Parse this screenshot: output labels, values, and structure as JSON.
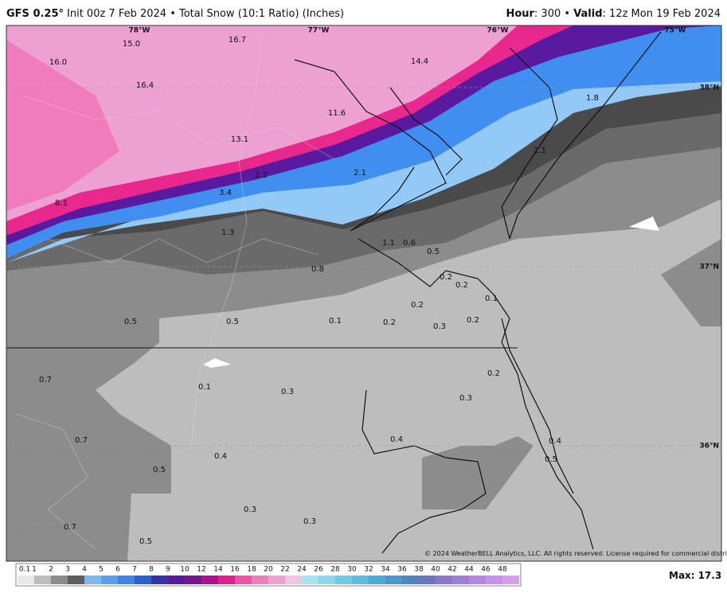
{
  "header": {
    "left_bold": "GFS 0.25°",
    "left_text": "Init 00z 7 Feb 2024 • Total Snow (10:1 Ratio) (Inches)",
    "right_parts": [
      "Hour",
      ": 300 • ",
      "Valid",
      ": 12z Mon 19 Feb 2024"
    ]
  },
  "lon_labels": [
    "78°W",
    "77°W",
    "76°W",
    "75°W"
  ],
  "lat_labels": [
    "38°N",
    "37°N",
    "36°N"
  ],
  "points": [
    "16.7",
    "15.0",
    "16.0",
    "16.4",
    "14.4",
    "11.6",
    "1.8",
    "13.1",
    "2.1",
    "2.1",
    "2.2",
    "3.4",
    "8.1",
    "1.3",
    "1.1",
    "0.6",
    "0.5",
    "0.8",
    "0.2",
    "0.2",
    "0.1",
    "0.2",
    "0.5",
    "0.5",
    "0.1",
    "0.2",
    "0.3",
    "0.2",
    "0.2",
    "0.7",
    "0.1",
    "0.3",
    "0.3",
    "0.4",
    "0.4",
    "0.7",
    "0.5",
    "0.4",
    "0.5",
    "0.3",
    "0.3",
    "0.7",
    "0.5"
  ],
  "copyright": "© 2024 WeatherBELL Analytics, LLC. All rights reserved. License required for commercial distribution.",
  "watermark": "WeatherBELL",
  "legend": {
    "labels": [
      "0.1",
      "1",
      "2",
      "3",
      "4",
      "5",
      "6",
      "7",
      "8",
      "9",
      "10",
      "12",
      "14",
      "16",
      "18",
      "20",
      "22",
      "24",
      "26",
      "28",
      "30",
      "32",
      "34",
      "36",
      "38",
      "40",
      "42",
      "44",
      "46",
      "48"
    ],
    "colors": [
      "#e8e8e8",
      "#bdbdbd",
      "#8c8c8c",
      "#5e5e5e",
      "#7fb6f5",
      "#5b9ff2",
      "#3d85e8",
      "#2a5fd6",
      "#3b2fb0",
      "#5a1aa0",
      "#7a1590",
      "#b0108a",
      "#e0208c",
      "#f24fa6",
      "#f07cbe",
      "#eda0d2",
      "#f2c4e4",
      "#a8e4f2",
      "#8ad8ec",
      "#6ecbe6",
      "#58bede",
      "#48aed6",
      "#4a98c8",
      "#5484c0",
      "#6a76c0",
      "#8a78d0",
      "#a07ed8",
      "#b488e0",
      "#c492e6",
      "#d4a0ec"
    ]
  },
  "max_label": "Max:",
  "max_value": "17.3"
}
